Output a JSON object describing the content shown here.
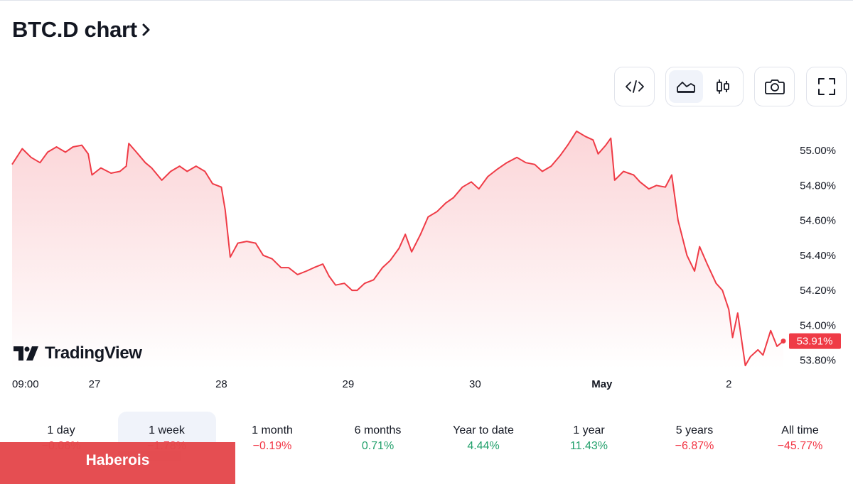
{
  "header": {
    "title": "BTC.D chart"
  },
  "toolbar": {
    "icons": [
      "embed-code-icon",
      "area-chart-icon",
      "candles-icon",
      "camera-icon",
      "fullscreen-icon"
    ],
    "active_chart_style": "area"
  },
  "branding": {
    "logo_text": "TradingView"
  },
  "colors": {
    "line": "#ef3b46",
    "fill_top": "#fbd3d6",
    "fill_bottom": "#ffffff",
    "positive": "#22a06b",
    "negative": "#f23645",
    "badge": "#ef3b46"
  },
  "chart_data": {
    "type": "area",
    "symbol": "BTC.D",
    "grid": false,
    "xlabel": "",
    "ylabel": "",
    "ylim": [
      53.75,
      55.15
    ],
    "y_ticks": [
      55.0,
      54.8,
      54.6,
      54.4,
      54.2,
      54.0,
      53.8
    ],
    "y_tick_labels": [
      "55.00%",
      "54.80%",
      "54.60%",
      "54.40%",
      "54.20%",
      "54.00%",
      "53.80%"
    ],
    "x_ticks": [
      {
        "t": 0,
        "label": "09:00"
      },
      {
        "t": 0.65,
        "label": "27"
      },
      {
        "t": 1.65,
        "label": "28"
      },
      {
        "t": 2.65,
        "label": "29"
      },
      {
        "t": 3.65,
        "label": "30"
      },
      {
        "t": 4.65,
        "label": "May",
        "bold": true
      },
      {
        "t": 5.65,
        "label": "2"
      }
    ],
    "last_value_label": "53.91%",
    "series": [
      {
        "values": [
          [
            0.0,
            54.92
          ],
          [
            0.08,
            55.01
          ],
          [
            0.15,
            54.96
          ],
          [
            0.22,
            54.93
          ],
          [
            0.28,
            54.99
          ],
          [
            0.35,
            55.02
          ],
          [
            0.42,
            54.99
          ],
          [
            0.48,
            55.02
          ],
          [
            0.55,
            55.03
          ],
          [
            0.6,
            54.98
          ],
          [
            0.63,
            54.86
          ],
          [
            0.7,
            54.9
          ],
          [
            0.78,
            54.87
          ],
          [
            0.85,
            54.88
          ],
          [
            0.9,
            54.91
          ],
          [
            0.92,
            55.04
          ],
          [
            0.98,
            54.99
          ],
          [
            1.05,
            54.93
          ],
          [
            1.1,
            54.9
          ],
          [
            1.18,
            54.83
          ],
          [
            1.25,
            54.88
          ],
          [
            1.32,
            54.91
          ],
          [
            1.38,
            54.88
          ],
          [
            1.45,
            54.91
          ],
          [
            1.52,
            54.88
          ],
          [
            1.58,
            54.81
          ],
          [
            1.65,
            54.79
          ],
          [
            1.68,
            54.66
          ],
          [
            1.72,
            54.39
          ],
          [
            1.78,
            54.47
          ],
          [
            1.85,
            54.48
          ],
          [
            1.92,
            54.47
          ],
          [
            1.98,
            54.4
          ],
          [
            2.05,
            54.38
          ],
          [
            2.12,
            54.33
          ],
          [
            2.18,
            54.33
          ],
          [
            2.25,
            54.29
          ],
          [
            2.32,
            54.31
          ],
          [
            2.38,
            54.33
          ],
          [
            2.45,
            54.35
          ],
          [
            2.5,
            54.28
          ],
          [
            2.55,
            54.23
          ],
          [
            2.62,
            54.24
          ],
          [
            2.68,
            54.2
          ],
          [
            2.72,
            54.2
          ],
          [
            2.78,
            54.24
          ],
          [
            2.85,
            54.26
          ],
          [
            2.92,
            54.33
          ],
          [
            2.98,
            54.37
          ],
          [
            3.05,
            54.44
          ],
          [
            3.1,
            54.52
          ],
          [
            3.15,
            54.42
          ],
          [
            3.22,
            54.52
          ],
          [
            3.28,
            54.62
          ],
          [
            3.35,
            54.65
          ],
          [
            3.42,
            54.7
          ],
          [
            3.48,
            54.73
          ],
          [
            3.55,
            54.79
          ],
          [
            3.62,
            54.82
          ],
          [
            3.68,
            54.78
          ],
          [
            3.75,
            54.85
          ],
          [
            3.82,
            54.89
          ],
          [
            3.9,
            54.93
          ],
          [
            3.98,
            54.96
          ],
          [
            4.05,
            54.93
          ],
          [
            4.12,
            54.92
          ],
          [
            4.18,
            54.88
          ],
          [
            4.25,
            54.91
          ],
          [
            4.32,
            54.97
          ],
          [
            4.38,
            55.03
          ],
          [
            4.45,
            55.11
          ],
          [
            4.52,
            55.08
          ],
          [
            4.58,
            55.06
          ],
          [
            4.62,
            54.98
          ],
          [
            4.68,
            55.03
          ],
          [
            4.72,
            55.07
          ],
          [
            4.75,
            54.83
          ],
          [
            4.82,
            54.88
          ],
          [
            4.9,
            54.86
          ],
          [
            4.95,
            54.82
          ],
          [
            5.02,
            54.78
          ],
          [
            5.08,
            54.8
          ],
          [
            5.15,
            54.79
          ],
          [
            5.2,
            54.86
          ],
          [
            5.25,
            54.6
          ],
          [
            5.32,
            54.4
          ],
          [
            5.38,
            54.31
          ],
          [
            5.42,
            54.45
          ],
          [
            5.48,
            54.35
          ],
          [
            5.55,
            54.24
          ],
          [
            5.6,
            54.2
          ],
          [
            5.65,
            54.09
          ],
          [
            5.68,
            53.93
          ],
          [
            5.72,
            54.07
          ],
          [
            5.78,
            53.77
          ],
          [
            5.82,
            53.82
          ],
          [
            5.88,
            53.86
          ],
          [
            5.92,
            53.83
          ],
          [
            5.98,
            53.97
          ],
          [
            6.03,
            53.88
          ],
          [
            6.08,
            53.91
          ]
        ]
      }
    ]
  },
  "ranges": [
    {
      "label": "1 day",
      "change": "−0.06%",
      "dir": "down",
      "active": false
    },
    {
      "label": "1 week",
      "change": "−1.78%",
      "dir": "down",
      "active": true
    },
    {
      "label": "1 month",
      "change": "−0.19%",
      "dir": "down",
      "active": false
    },
    {
      "label": "6 months",
      "change": "0.71%",
      "dir": "up",
      "active": false
    },
    {
      "label": "Year to date",
      "change": "4.44%",
      "dir": "up",
      "active": false
    },
    {
      "label": "1 year",
      "change": "11.43%",
      "dir": "up",
      "active": false
    },
    {
      "label": "5 years",
      "change": "−6.87%",
      "dir": "down",
      "active": false
    },
    {
      "label": "All time",
      "change": "−45.77%",
      "dir": "down",
      "active": false
    }
  ],
  "watermark": {
    "text": "Haberois"
  }
}
